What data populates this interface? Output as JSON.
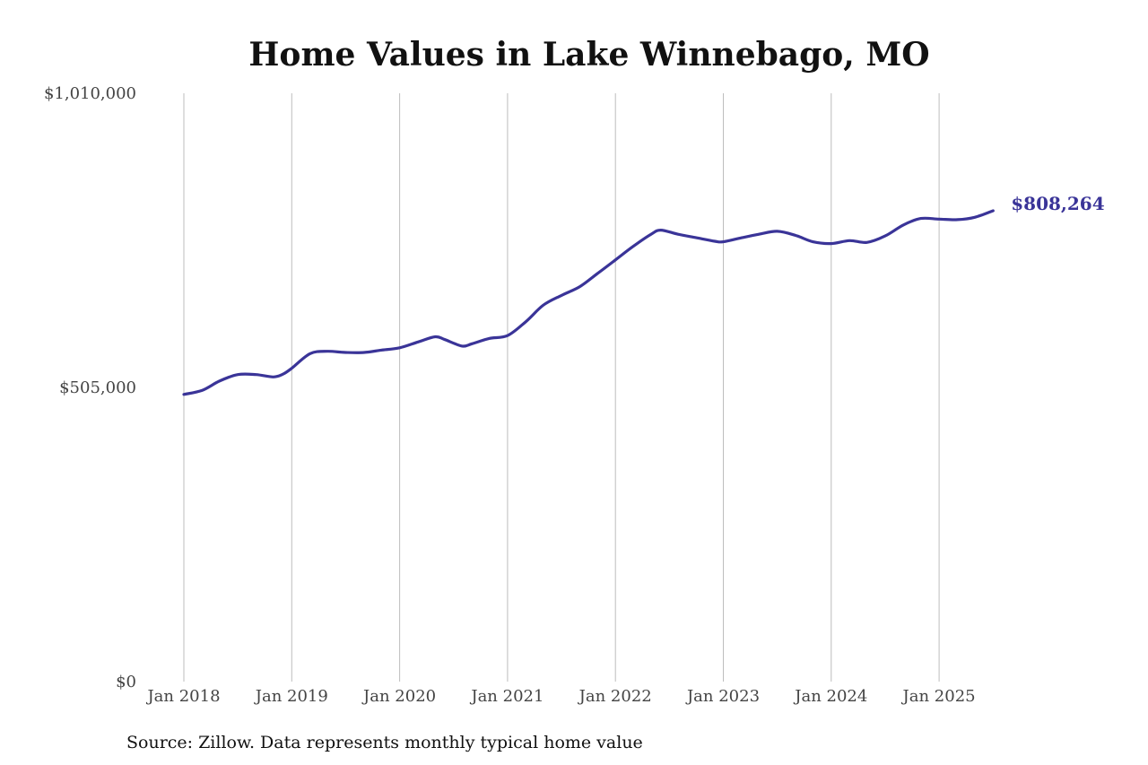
{
  "chart_data": {
    "type": "line",
    "title": "Home Values in Lake Winnebago, MO",
    "xlabel": "",
    "ylabel": "",
    "ylim": [
      0,
      1010000
    ],
    "yticks": [
      {
        "value": 0,
        "label": "$0"
      },
      {
        "value": 505000,
        "label": "$505,000"
      },
      {
        "value": 1010000,
        "label": "$1,010,000"
      }
    ],
    "xticks": [
      {
        "value": 2018.0,
        "label": "Jan 2018"
      },
      {
        "value": 2019.0,
        "label": "Jan 2019"
      },
      {
        "value": 2020.0,
        "label": "Jan 2020"
      },
      {
        "value": 2021.0,
        "label": "Jan 2021"
      },
      {
        "value": 2022.0,
        "label": "Jan 2022"
      },
      {
        "value": 2023.0,
        "label": "Jan 2023"
      },
      {
        "value": 2024.0,
        "label": "Jan 2024"
      },
      {
        "value": 2025.0,
        "label": "Jan 2025"
      }
    ],
    "xlim": [
      2018.0,
      2025.5
    ],
    "grid": "vertical",
    "line_color": "#3a3498",
    "series": [
      {
        "x": [
          2018.0,
          2018.17,
          2018.33,
          2018.5,
          2018.67,
          2018.83,
          2018.92,
          2019.0,
          2019.17,
          2019.33,
          2019.5,
          2019.67,
          2019.83,
          2020.0,
          2020.17,
          2020.33,
          2020.42,
          2020.58,
          2020.67,
          2020.83,
          2021.0,
          2021.17,
          2021.33,
          2021.5,
          2021.67,
          2021.83,
          2022.0,
          2022.17,
          2022.33,
          2022.42,
          2022.58,
          2022.75,
          2022.92,
          2023.0,
          2023.17,
          2023.33,
          2023.5,
          2023.67,
          2023.83,
          2024.0,
          2024.17,
          2024.33,
          2024.5,
          2024.67,
          2024.83,
          2025.0,
          2025.17,
          2025.33,
          2025.5
        ],
        "values": [
          493000,
          500000,
          516000,
          527000,
          527000,
          523000,
          528000,
          538000,
          563000,
          567000,
          565000,
          565000,
          569000,
          573000,
          583000,
          592000,
          587000,
          576000,
          580000,
          589000,
          594000,
          618000,
          646000,
          663000,
          678000,
          700000,
          724000,
          748000,
          768000,
          775000,
          768000,
          762000,
          756000,
          755000,
          762000,
          768000,
          773000,
          766000,
          755000,
          752000,
          757000,
          754000,
          765000,
          784000,
          795000,
          794000,
          793000,
          797000,
          808264
        ]
      }
    ],
    "end_label": "$808,264",
    "source": "Source: Zillow. Data represents monthly typical home value"
  }
}
